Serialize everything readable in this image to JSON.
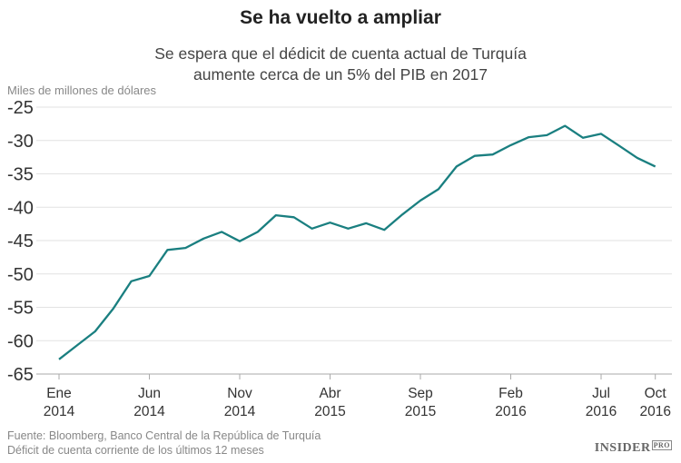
{
  "chart_data": {
    "type": "line",
    "title": "Se ha vuelto a ampliar",
    "subtitle_lines": [
      "Se espera que el dédicit de cuenta actual de Turquía",
      "aumente cerca de un 5% del PIB en 2017"
    ],
    "ylabel": "Miles de millones de dólares",
    "ylim": [
      -65,
      -25
    ],
    "yticks": [
      "-25",
      "-30",
      "-35",
      "-40",
      "-45",
      "-50",
      "-55",
      "-60",
      "-65"
    ],
    "ytick_values": [
      -25,
      -30,
      -35,
      -40,
      -45,
      -50,
      -55,
      -60,
      -65
    ],
    "grid": true,
    "x_start": "2014-01",
    "x_end": "2016-10",
    "xticks": [
      {
        "month_index": 0,
        "line1": "Ene",
        "line2": "2014"
      },
      {
        "month_index": 5,
        "line1": "Jun",
        "line2": "2014"
      },
      {
        "month_index": 10,
        "line1": "Nov",
        "line2": "2014"
      },
      {
        "month_index": 15,
        "line1": "Abr",
        "line2": "2015"
      },
      {
        "month_index": 20,
        "line1": "Sep",
        "line2": "2015"
      },
      {
        "month_index": 25,
        "line1": "Feb",
        "line2": "2016"
      },
      {
        "month_index": 30,
        "line1": "Jul",
        "line2": "2016"
      },
      {
        "month_index": 33,
        "line1": "Oct",
        "line2": "2016"
      }
    ],
    "x": [
      "2014-01",
      "2014-02",
      "2014-03",
      "2014-04",
      "2014-05",
      "2014-06",
      "2014-07",
      "2014-08",
      "2014-09",
      "2014-10",
      "2014-11",
      "2014-12",
      "2015-01",
      "2015-02",
      "2015-03",
      "2015-04",
      "2015-05",
      "2015-06",
      "2015-07",
      "2015-08",
      "2015-09",
      "2015-10",
      "2015-11",
      "2015-12",
      "2016-01",
      "2016-02",
      "2016-03",
      "2016-04",
      "2016-05",
      "2016-06",
      "2016-07",
      "2016-08",
      "2016-09",
      "2016-10"
    ],
    "values": [
      -62.8,
      -60.7,
      -58.6,
      -55.2,
      -51.1,
      -50.3,
      -46.4,
      -46.1,
      -44.7,
      -43.7,
      -45.1,
      -43.7,
      -41.2,
      -41.5,
      -43.2,
      -42.3,
      -43.2,
      -42.4,
      -43.4,
      -41.1,
      -39.0,
      -37.3,
      -33.9,
      -32.3,
      -32.1,
      -30.7,
      -29.5,
      -29.2,
      -27.8,
      -29.6,
      -29.0,
      -30.8,
      -32.6,
      -33.9
    ],
    "line_color": "#1a7f80"
  },
  "footer": {
    "source": "Fuente: Bloomberg, Banco Central de la República de Turquía",
    "note": "Déficit de cuenta corriente de los últimos 12 meses"
  },
  "logo": {
    "text": "INSIDER",
    "badge": "PRO"
  }
}
